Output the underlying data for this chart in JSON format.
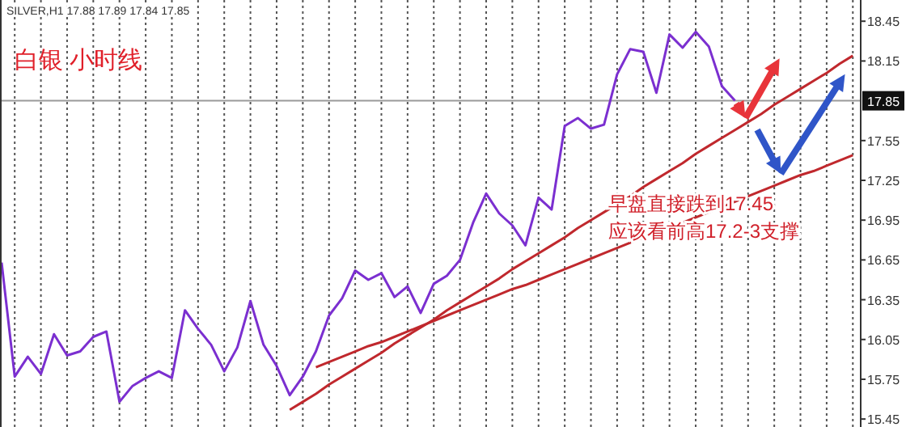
{
  "chart_data": {
    "type": "line",
    "title": "白银 小时线",
    "annotations": [
      "SILVER,H1  17.88 17.89 17.84 17.85",
      "早盘直接跌到17.45",
      "应该看前高17.2-3支撑"
    ],
    "categories": [
      null,
      null,
      null,
      null,
      null,
      null,
      null,
      null,
      null,
      null,
      null,
      null,
      null,
      null,
      null,
      null,
      null,
      null,
      null,
      null,
      null,
      null,
      null,
      null,
      null,
      null,
      null,
      null,
      null,
      null,
      null,
      null,
      null,
      null,
      null,
      null,
      null,
      null,
      null,
      null,
      null,
      null,
      null,
      null,
      null,
      null,
      null,
      null,
      null,
      null,
      null,
      null,
      null,
      null,
      null,
      null,
      null,
      null,
      null,
      null,
      null,
      null,
      null,
      null,
      null,
      null
    ],
    "ylim": [
      15.39,
      18.61
    ],
    "yticks": [
      18.45,
      18.15,
      17.55,
      17.25,
      16.95,
      16.65,
      16.35,
      16.05,
      15.75,
      15.45
    ],
    "grid": "x",
    "tick_labels": "y",
    "ref_lines": [
      {
        "axis": "y",
        "value": 17.85,
        "label": "17.85",
        "color": "#9a9a9a"
      }
    ],
    "series": [
      {
        "color": "#7b2fd0",
        "values": [
          16.63,
          15.77,
          15.92,
          15.79,
          16.09,
          15.93,
          15.96,
          16.07,
          16.11,
          15.58,
          15.7,
          15.76,
          15.81,
          15.76,
          16.27,
          16.13,
          16.01,
          15.81,
          15.99,
          16.34,
          16.01,
          15.85,
          15.63,
          15.77,
          15.96,
          16.23,
          16.36,
          16.57,
          16.5,
          16.55,
          16.37,
          16.45,
          16.25,
          16.47,
          16.53,
          16.65,
          16.93,
          17.15,
          17.0,
          16.91,
          16.76,
          17.12,
          17.03,
          17.66,
          17.72,
          17.64,
          17.67,
          18.05,
          18.24,
          18.22,
          17.91,
          18.35,
          18.25,
          18.37,
          18.26,
          17.96,
          17.85,
          null,
          null,
          null,
          null,
          null,
          null,
          null,
          null,
          null
        ]
      },
      {
        "color": "#c0282d",
        "values": [
          null,
          null,
          null,
          null,
          null,
          null,
          null,
          null,
          null,
          null,
          null,
          null,
          null,
          null,
          null,
          null,
          null,
          null,
          null,
          null,
          null,
          null,
          15.52,
          15.58,
          15.64,
          15.71,
          15.77,
          15.83,
          15.89,
          15.95,
          16.02,
          16.08,
          16.14,
          16.2,
          16.27,
          16.33,
          16.39,
          16.45,
          16.51,
          16.58,
          16.64,
          16.7,
          16.76,
          16.82,
          16.89,
          16.95,
          17.01,
          17.07,
          17.13,
          17.2,
          17.26,
          17.32,
          17.38,
          17.45,
          17.51,
          17.57,
          17.63,
          17.69,
          17.75,
          17.82,
          17.88,
          17.94,
          18.0,
          18.06,
          18.13,
          18.19
        ]
      },
      {
        "color": "#c0282d",
        "values": [
          null,
          null,
          null,
          null,
          null,
          null,
          null,
          null,
          null,
          null,
          null,
          null,
          null,
          null,
          null,
          null,
          null,
          null,
          null,
          null,
          null,
          null,
          null,
          null,
          15.84,
          15.88,
          15.92,
          15.96,
          16.0,
          16.03,
          16.07,
          16.11,
          16.15,
          16.19,
          16.23,
          16.27,
          16.31,
          16.35,
          16.39,
          16.43,
          16.46,
          16.5,
          16.54,
          16.58,
          16.62,
          16.66,
          16.7,
          16.74,
          16.78,
          16.82,
          16.86,
          16.89,
          16.93,
          16.97,
          17.01,
          17.05,
          17.09,
          17.13,
          17.17,
          17.21,
          17.25,
          17.29,
          17.32,
          17.36,
          17.4,
          17.44
        ]
      }
    ]
  }
}
